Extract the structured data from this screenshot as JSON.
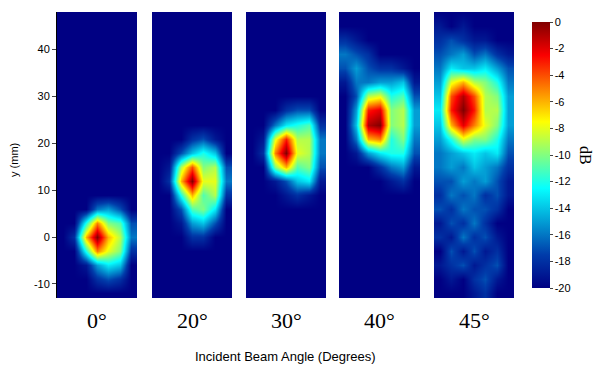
{
  "chart_data": {
    "type": "heatmap",
    "ylabel": "y (mm)",
    "xlabel": "Incident Beam Angle (Degrees)",
    "ylim": [
      -13,
      48
    ],
    "yticks": [
      -10,
      0,
      10,
      20,
      30,
      40
    ],
    "tick_labels": "y",
    "y": [
      -12,
      -9,
      -6,
      -3,
      0,
      3,
      6,
      9,
      12,
      15,
      18,
      21,
      24,
      27,
      30,
      33,
      36,
      39,
      42,
      45,
      48
    ],
    "colorbar": {
      "title": "dB",
      "range": [
        -20,
        0
      ],
      "ticks": [
        0,
        -2,
        -4,
        -6,
        -8,
        -10,
        -12,
        -14,
        -16,
        -18,
        -20
      ]
    },
    "panels": [
      {
        "label": "0°",
        "cells": [
          [
            -20,
            -20,
            -20,
            -20,
            -20,
            -20,
            -20
          ],
          [
            -20,
            -20,
            -20,
            -18,
            -17,
            -18,
            -20
          ],
          [
            -20,
            -20,
            -19,
            -15,
            -13,
            -14,
            -20
          ],
          [
            -20,
            -20,
            -12,
            -5,
            -8,
            -10,
            -18
          ],
          [
            -20,
            -18,
            -6,
            0,
            -6,
            -9,
            -16
          ],
          [
            -20,
            -20,
            -12,
            -5,
            -10,
            -11,
            -17
          ],
          [
            -20,
            -20,
            -20,
            -16,
            -15,
            -17,
            -20
          ],
          [
            -20,
            -20,
            -20,
            -20,
            -20,
            -20,
            -20
          ],
          [
            -20,
            -20,
            -20,
            -20,
            -20,
            -20,
            -20
          ],
          [
            -20,
            -20,
            -20,
            -20,
            -20,
            -20,
            -20
          ],
          [
            -20,
            -20,
            -20,
            -20,
            -20,
            -20,
            -20
          ],
          [
            -20,
            -20,
            -20,
            -20,
            -20,
            -20,
            -20
          ],
          [
            -20,
            -20,
            -20,
            -20,
            -20,
            -20,
            -20
          ],
          [
            -20,
            -20,
            -20,
            -20,
            -20,
            -20,
            -20
          ],
          [
            -20,
            -20,
            -20,
            -20,
            -20,
            -20,
            -20
          ],
          [
            -20,
            -20,
            -20,
            -20,
            -20,
            -20,
            -20
          ],
          [
            -20,
            -20,
            -20,
            -20,
            -20,
            -20,
            -20
          ],
          [
            -20,
            -20,
            -20,
            -20,
            -20,
            -20,
            -20
          ],
          [
            -20,
            -20,
            -20,
            -20,
            -20,
            -20,
            -20
          ],
          [
            -20,
            -20,
            -20,
            -20,
            -20,
            -20,
            -20
          ],
          [
            -20,
            -20,
            -20,
            -20,
            -20,
            -20,
            -20
          ]
        ]
      },
      {
        "label": "20°",
        "cells": [
          [
            -20,
            -20,
            -20,
            -20,
            -20,
            -20,
            -20
          ],
          [
            -20,
            -20,
            -20,
            -20,
            -20,
            -20,
            -20
          ],
          [
            -20,
            -20,
            -20,
            -20,
            -20,
            -20,
            -20
          ],
          [
            -20,
            -20,
            -20,
            -20,
            -20,
            -20,
            -20
          ],
          [
            -20,
            -20,
            -20,
            -18,
            -18,
            -20,
            -20
          ],
          [
            -20,
            -20,
            -19,
            -15,
            -14,
            -17,
            -20
          ],
          [
            -20,
            -20,
            -17,
            -11,
            -10,
            -13,
            -20
          ],
          [
            -20,
            -20,
            -12,
            -6,
            -11,
            -9,
            -18
          ],
          [
            -20,
            -18,
            -6,
            0,
            -8,
            -8,
            -16
          ],
          [
            -20,
            -19,
            -9,
            -4,
            -10,
            -9,
            -17
          ],
          [
            -20,
            -20,
            -17,
            -14,
            -12,
            -14,
            -20
          ],
          [
            -20,
            -20,
            -20,
            -18,
            -17,
            -19,
            -20
          ],
          [
            -20,
            -20,
            -20,
            -20,
            -20,
            -20,
            -20
          ],
          [
            -20,
            -20,
            -20,
            -20,
            -20,
            -20,
            -20
          ],
          [
            -20,
            -20,
            -20,
            -20,
            -20,
            -20,
            -20
          ],
          [
            -20,
            -20,
            -20,
            -20,
            -20,
            -20,
            -20
          ],
          [
            -20,
            -20,
            -20,
            -20,
            -20,
            -20,
            -20
          ],
          [
            -20,
            -20,
            -20,
            -20,
            -20,
            -20,
            -20
          ],
          [
            -20,
            -20,
            -20,
            -20,
            -20,
            -20,
            -20
          ],
          [
            -20,
            -20,
            -20,
            -20,
            -20,
            -20,
            -20
          ],
          [
            -20,
            -20,
            -20,
            -20,
            -20,
            -20,
            -20
          ]
        ]
      },
      {
        "label": "30°",
        "cells": [
          [
            -20,
            -20,
            -20,
            -20,
            -20,
            -20,
            -20
          ],
          [
            -20,
            -20,
            -20,
            -20,
            -20,
            -20,
            -20
          ],
          [
            -20,
            -20,
            -20,
            -20,
            -20,
            -20,
            -20
          ],
          [
            -20,
            -20,
            -20,
            -20,
            -20,
            -20,
            -20
          ],
          [
            -20,
            -20,
            -20,
            -20,
            -20,
            -20,
            -20
          ],
          [
            -20,
            -20,
            -20,
            -20,
            -20,
            -20,
            -20
          ],
          [
            -20,
            -20,
            -20,
            -20,
            -20,
            -20,
            -20
          ],
          [
            -20,
            -20,
            -20,
            -19,
            -18,
            -19,
            -20
          ],
          [
            -20,
            -20,
            -19,
            -17,
            -14,
            -13,
            -19
          ],
          [
            -20,
            -20,
            -10,
            -6,
            -11,
            -10,
            -17
          ],
          [
            -20,
            -18,
            -5,
            0,
            -8,
            -9,
            -16
          ],
          [
            -20,
            -19,
            -8,
            -3,
            -9,
            -9,
            -16
          ],
          [
            -20,
            -20,
            -16,
            -13,
            -12,
            -11,
            -18
          ],
          [
            -20,
            -20,
            -20,
            -18,
            -17,
            -17,
            -20
          ],
          [
            -20,
            -20,
            -20,
            -20,
            -20,
            -20,
            -20
          ],
          [
            -20,
            -20,
            -20,
            -20,
            -20,
            -20,
            -20
          ],
          [
            -20,
            -20,
            -20,
            -20,
            -20,
            -20,
            -20
          ],
          [
            -20,
            -20,
            -20,
            -20,
            -20,
            -20,
            -20
          ],
          [
            -20,
            -20,
            -20,
            -20,
            -20,
            -20,
            -20
          ],
          [
            -20,
            -20,
            -20,
            -20,
            -20,
            -20,
            -20
          ],
          [
            -20,
            -20,
            -20,
            -20,
            -20,
            -20,
            -20
          ]
        ]
      },
      {
        "label": "40°",
        "cells": [
          [
            -20,
            -20,
            -20,
            -20,
            -20,
            -20,
            -20
          ],
          [
            -20,
            -20,
            -20,
            -20,
            -20,
            -20,
            -20
          ],
          [
            -20,
            -20,
            -20,
            -20,
            -20,
            -20,
            -20
          ],
          [
            -20,
            -20,
            -20,
            -20,
            -20,
            -20,
            -20
          ],
          [
            -20,
            -20,
            -20,
            -20,
            -20,
            -20,
            -20
          ],
          [
            -20,
            -20,
            -20,
            -20,
            -20,
            -20,
            -20
          ],
          [
            -20,
            -20,
            -20,
            -20,
            -20,
            -20,
            -20
          ],
          [
            -20,
            -20,
            -20,
            -20,
            -20,
            -20,
            -20
          ],
          [
            -20,
            -20,
            -20,
            -20,
            -19,
            -18,
            -20
          ],
          [
            -20,
            -20,
            -20,
            -18,
            -16,
            -15,
            -19
          ],
          [
            -20,
            -19,
            -15,
            -13,
            -12,
            -12,
            -17
          ],
          [
            -20,
            -16,
            -6,
            -5,
            -12,
            -10,
            -16
          ],
          [
            -20,
            -14,
            -1,
            0,
            -10,
            -9,
            -15
          ],
          [
            -20,
            -15,
            -3,
            -2,
            -10,
            -9,
            -15
          ],
          [
            -20,
            -17,
            -9,
            -8,
            -12,
            -11,
            -17
          ],
          [
            -19,
            -16,
            -16,
            -15,
            -15,
            -14,
            -19
          ],
          [
            -17,
            -15,
            -17,
            -18,
            -18,
            -19,
            -20
          ],
          [
            -16,
            -17,
            -18,
            -20,
            -20,
            -20,
            -20
          ],
          [
            -18,
            -19,
            -20,
            -20,
            -20,
            -20,
            -20
          ],
          [
            -20,
            -20,
            -20,
            -20,
            -20,
            -20,
            -20
          ],
          [
            -20,
            -20,
            -20,
            -20,
            -20,
            -20,
            -20
          ]
        ]
      },
      {
        "label": "45°",
        "cells": [
          [
            -20,
            -20,
            -20,
            -19,
            -18,
            -20,
            -20
          ],
          [
            -20,
            -19,
            -20,
            -18,
            -17,
            -19,
            -20
          ],
          [
            -19,
            -18,
            -17,
            -19,
            -18,
            -17,
            -20
          ],
          [
            -20,
            -17,
            -19,
            -17,
            -19,
            -18,
            -20
          ],
          [
            -18,
            -19,
            -16,
            -18,
            -17,
            -19,
            -20
          ],
          [
            -19,
            -17,
            -18,
            -16,
            -18,
            -20,
            -20
          ],
          [
            -17,
            -18,
            -16,
            -17,
            -17,
            -18,
            -20
          ],
          [
            -18,
            -16,
            -17,
            -16,
            -18,
            -17,
            -19
          ],
          [
            -17,
            -17,
            -15,
            -16,
            -15,
            -17,
            -19
          ],
          [
            -16,
            -15,
            -16,
            -14,
            -15,
            -16,
            -18
          ],
          [
            -16,
            -15,
            -14,
            -13,
            -14,
            -13,
            -17
          ],
          [
            -15,
            -12,
            -8,
            -10,
            -10,
            -12,
            -16
          ],
          [
            -14,
            -6,
            -2,
            -5,
            -8,
            -10,
            -15
          ],
          [
            -13,
            -3,
            0,
            -3,
            -9,
            -9,
            -15
          ],
          [
            -14,
            -4,
            -1,
            -4,
            -9,
            -10,
            -15
          ],
          [
            -15,
            -8,
            -6,
            -9,
            -10,
            -12,
            -16
          ],
          [
            -16,
            -13,
            -14,
            -14,
            -13,
            -15,
            -17
          ],
          [
            -17,
            -16,
            -15,
            -17,
            -16,
            -18,
            -19
          ],
          [
            -18,
            -17,
            -18,
            -19,
            -19,
            -20,
            -20
          ],
          [
            -19,
            -20,
            -19,
            -20,
            -20,
            -20,
            -20
          ],
          [
            -20,
            -20,
            -20,
            -20,
            -20,
            -20,
            -20
          ]
        ]
      }
    ]
  }
}
